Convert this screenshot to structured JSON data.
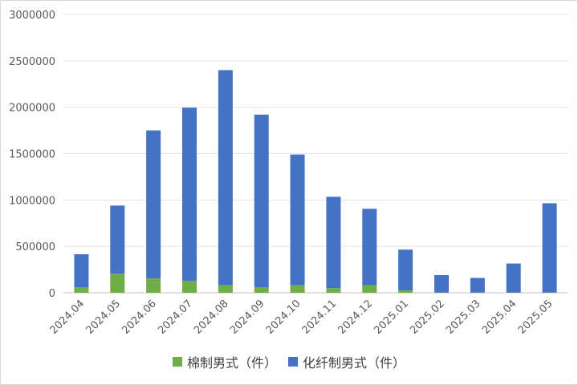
{
  "chart_data": {
    "type": "bar",
    "stacked": true,
    "title": "",
    "xlabel": "",
    "ylabel": "",
    "categories": [
      "2024.04",
      "2024.05",
      "2024.06",
      "2024.07",
      "2024.08",
      "2024.09",
      "2024.10",
      "2024.11",
      "2024.12",
      "2025.01",
      "2025.02",
      "2025.03",
      "2025.04",
      "2025.05"
    ],
    "series": [
      {
        "name": "棉制男式（件）",
        "color": "#70ad47",
        "values": [
          60000,
          205000,
          155000,
          130000,
          80000,
          60000,
          80000,
          50000,
          80000,
          25000,
          3000,
          3000,
          3000,
          3000
        ]
      },
      {
        "name": "化纤制男式（件）",
        "color": "#4472c4",
        "values": [
          355000,
          735000,
          1595000,
          1865000,
          2320000,
          1860000,
          1410000,
          985000,
          825000,
          440000,
          187000,
          157000,
          312000,
          962000
        ]
      }
    ],
    "ylim": [
      0,
      3000000
    ],
    "yticks": [
      0,
      500000,
      1000000,
      1500000,
      2000000,
      2500000,
      3000000
    ],
    "grid": true,
    "legend_position": "bottom"
  }
}
